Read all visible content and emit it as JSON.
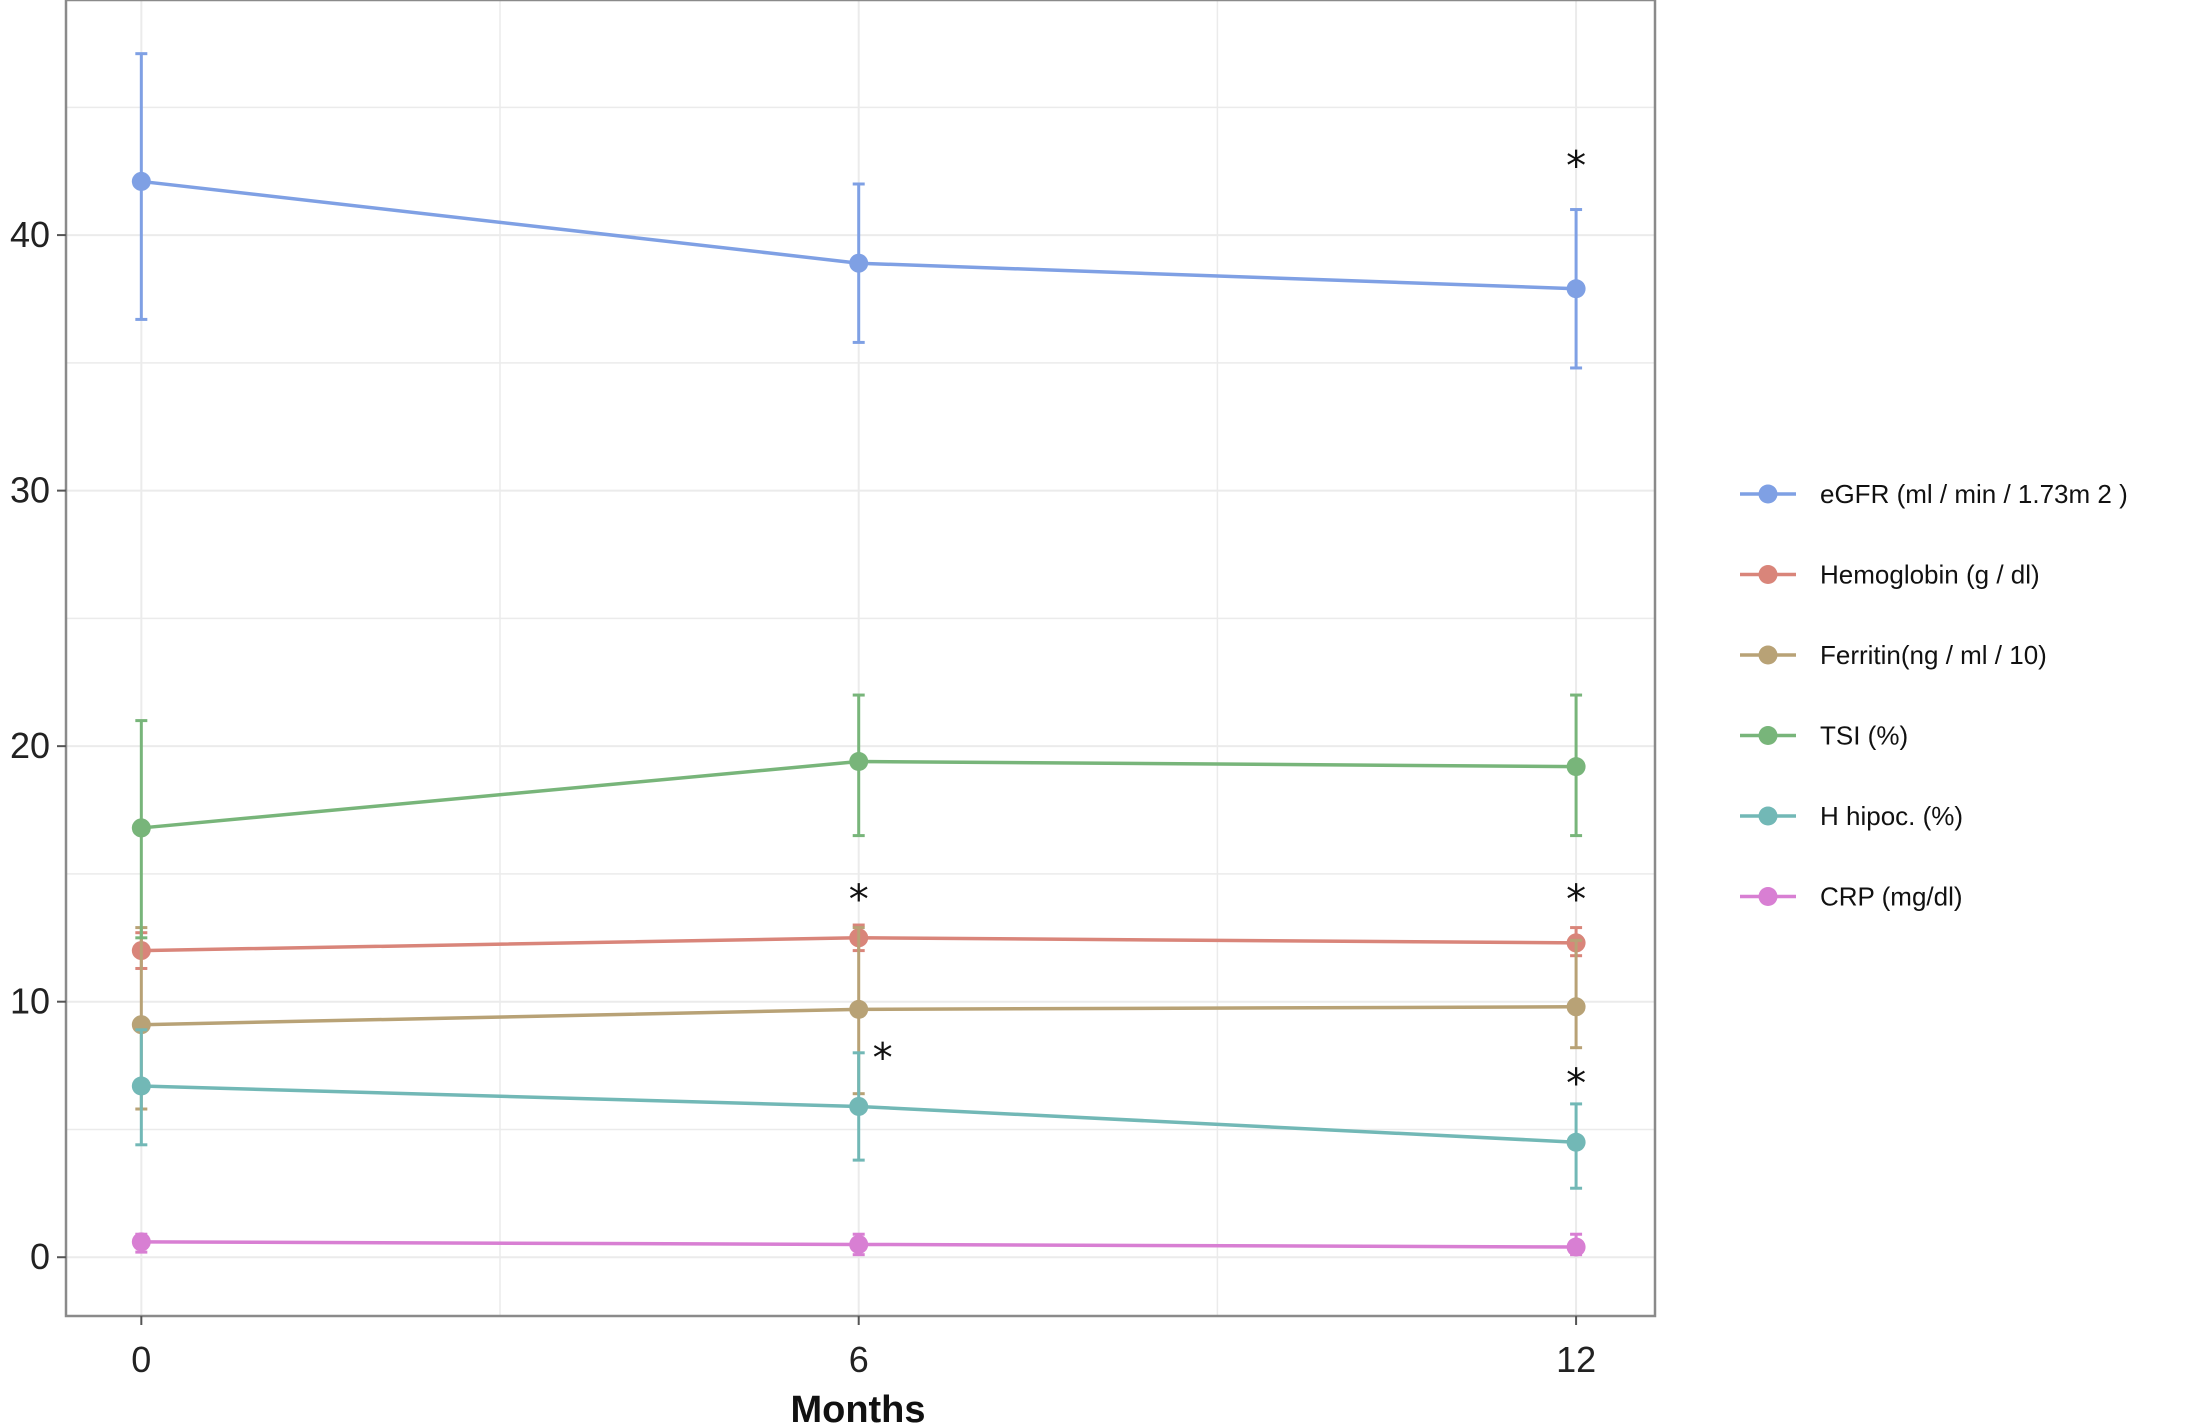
{
  "chart_data": {
    "type": "line",
    "xlabel": "Months",
    "ylabel": "",
    "x": [
      0,
      6,
      12
    ],
    "x_ticks": [
      "0",
      "6",
      "12"
    ],
    "y_ticks": [
      "0",
      "10",
      "20",
      "30",
      "40"
    ],
    "xlim": [
      -0.63,
      12.66
    ],
    "ylim": [
      -2.3,
      49.2
    ],
    "grid": true,
    "legend": "right",
    "series": [
      {
        "name": "eGFR (ml / min / 1.73m 2 )",
        "color": "#7fa0e4",
        "values": [
          42.1,
          38.9,
          37.9
        ],
        "lower": [
          36.7,
          35.8,
          34.8
        ],
        "upper": [
          47.1,
          42.0,
          41.0
        ]
      },
      {
        "name": "Hemoglobin (g / dl)",
        "color": "#d9857a",
        "values": [
          12.0,
          12.5,
          12.3
        ],
        "lower": [
          11.3,
          12.0,
          11.8
        ],
        "upper": [
          12.7,
          13.0,
          12.9
        ]
      },
      {
        "name": "Ferritin(ng / ml / 10)",
        "color": "#b8a276",
        "values": [
          9.1,
          9.7,
          9.8
        ],
        "lower": [
          5.8,
          6.4,
          8.2
        ],
        "upper": [
          12.9,
          12.9,
          12.4
        ]
      },
      {
        "name": "TSI (%)",
        "color": "#78b57a",
        "values": [
          16.8,
          19.4,
          19.2
        ],
        "lower": [
          12.5,
          16.5,
          16.5
        ],
        "upper": [
          21.0,
          22.0,
          22.0
        ]
      },
      {
        "name": "H hipoc. (%)",
        "color": "#72b8b6",
        "values": [
          6.7,
          5.9,
          4.5
        ],
        "lower": [
          4.4,
          3.8,
          2.7
        ],
        "upper": [
          8.9,
          8.0,
          6.0
        ]
      },
      {
        "name": "CRP (mg/dl)",
        "color": "#d87fd3",
        "values": [
          0.6,
          0.5,
          0.4
        ],
        "lower": [
          0.2,
          0.1,
          0.1
        ],
        "upper": [
          0.9,
          0.9,
          0.9
        ]
      }
    ],
    "annotations": [
      {
        "text": "*",
        "x": 12,
        "y": 42.8
      },
      {
        "text": "*",
        "x": 6,
        "y": 14.1
      },
      {
        "text": "*",
        "x": 12,
        "y": 14.1
      },
      {
        "text": "*",
        "x": 6.2,
        "y": 7.9
      },
      {
        "text": "*",
        "x": 12,
        "y": 6.9
      }
    ]
  }
}
